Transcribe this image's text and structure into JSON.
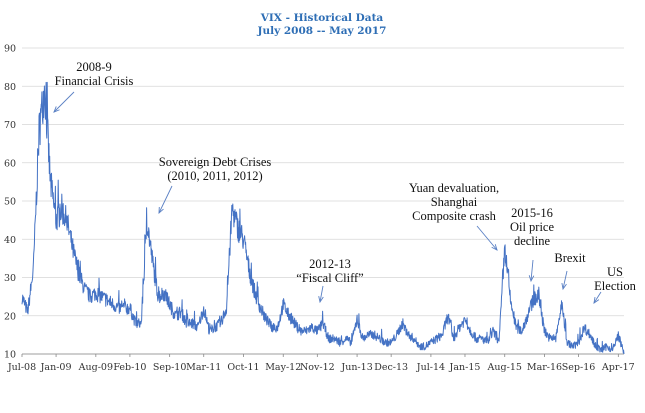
{
  "chart_data": {
    "type": "line",
    "title": "VIX - Historical Data",
    "subtitle": "July 2008 -- May 2017",
    "xlabel": "",
    "ylabel": "",
    "ylim": [
      10,
      90
    ],
    "y_ticks": [
      10,
      20,
      30,
      40,
      50,
      60,
      70,
      80,
      90
    ],
    "x_range": [
      "2008-07",
      "2017-05"
    ],
    "x_ticks": [
      "Jul-08",
      "Jan-09",
      "Aug-09",
      "Feb-10",
      "Sep-10",
      "Mar-11",
      "Oct-11",
      "May-12",
      "Nov-12",
      "Jun-13",
      "Dec-13",
      "Jul-14",
      "Jan-15",
      "Aug-15",
      "Mar-16",
      "Sep-16",
      "Apr-17"
    ],
    "grid": true,
    "line_color": "#4472c4",
    "series": [
      {
        "x": [
          "2008-07",
          "2008-08",
          "2008-09",
          "2008-10",
          "2008-11",
          "2008-12",
          "2009-01",
          "2009-02",
          "2009-03",
          "2009-04",
          "2009-05",
          "2009-06",
          "2009-07",
          "2009-08",
          "2009-09",
          "2009-10",
          "2009-11",
          "2009-12",
          "2010-01",
          "2010-02",
          "2010-03",
          "2010-04",
          "2010-05",
          "2010-06",
          "2010-07",
          "2010-08",
          "2010-09",
          "2010-10",
          "2010-11",
          "2010-12",
          "2011-01",
          "2011-02",
          "2011-03",
          "2011-04",
          "2011-05",
          "2011-06",
          "2011-07",
          "2011-08",
          "2011-09",
          "2011-10",
          "2011-11",
          "2011-12",
          "2012-01",
          "2012-02",
          "2012-03",
          "2012-04",
          "2012-05",
          "2012-06",
          "2012-07",
          "2012-08",
          "2012-09",
          "2012-10",
          "2012-11",
          "2012-12",
          "2013-01",
          "2013-02",
          "2013-03",
          "2013-04",
          "2013-05",
          "2013-06",
          "2013-07",
          "2013-08",
          "2013-09",
          "2013-10",
          "2013-11",
          "2013-12",
          "2014-01",
          "2014-02",
          "2014-03",
          "2014-04",
          "2014-05",
          "2014-06",
          "2014-07",
          "2014-08",
          "2014-09",
          "2014-10",
          "2014-11",
          "2014-12",
          "2015-01",
          "2015-02",
          "2015-03",
          "2015-04",
          "2015-05",
          "2015-06",
          "2015-07",
          "2015-08",
          "2015-09",
          "2015-10",
          "2015-11",
          "2015-12",
          "2016-01",
          "2016-02",
          "2016-03",
          "2016-04",
          "2016-05",
          "2016-06",
          "2016-07",
          "2016-08",
          "2016-09",
          "2016-10",
          "2016-11",
          "2016-12",
          "2017-01",
          "2017-02",
          "2017-03",
          "2017-04",
          "2017-05"
        ],
        "values": [
          25,
          21,
          32,
          68,
          80,
          55,
          45,
          48,
          44,
          37,
          31,
          27,
          25,
          26,
          25,
          24,
          23,
          22,
          22,
          22,
          18,
          18,
          45,
          34,
          25,
          26,
          23,
          20,
          21,
          18,
          18,
          17,
          22,
          16,
          17,
          18,
          22,
          48,
          43,
          40,
          32,
          26,
          22,
          19,
          17,
          17,
          23,
          20,
          18,
          16,
          16,
          17,
          16,
          18,
          14,
          14,
          13,
          14,
          13,
          19,
          14,
          15,
          15,
          14,
          13,
          13,
          15,
          18,
          15,
          14,
          12,
          12,
          13,
          14,
          15,
          20,
          14,
          17,
          19,
          16,
          14,
          14,
          13,
          16,
          13,
          38,
          24,
          17,
          16,
          20,
          24,
          25,
          16,
          14,
          14,
          23,
          13,
          12,
          13,
          17,
          15,
          12,
          11,
          12,
          11,
          15,
          10
        ]
      }
    ],
    "annotations": [
      {
        "lines": [
          "2008-9",
          "Financial Crisis"
        ]
      },
      {
        "lines": [
          "Sovereign Debt Crises",
          "(2010, 2011, 2012)"
        ]
      },
      {
        "lines": [
          "2012-13",
          "“Fiscal Cliff”"
        ]
      },
      {
        "lines": [
          "Yuan devaluation,",
          "Shanghai",
          "Composite crash"
        ]
      },
      {
        "lines": [
          "2015-16",
          "Oil price",
          "decline"
        ]
      },
      {
        "lines": [
          "Brexit"
        ]
      },
      {
        "lines": [
          "US",
          "Election"
        ]
      }
    ]
  }
}
